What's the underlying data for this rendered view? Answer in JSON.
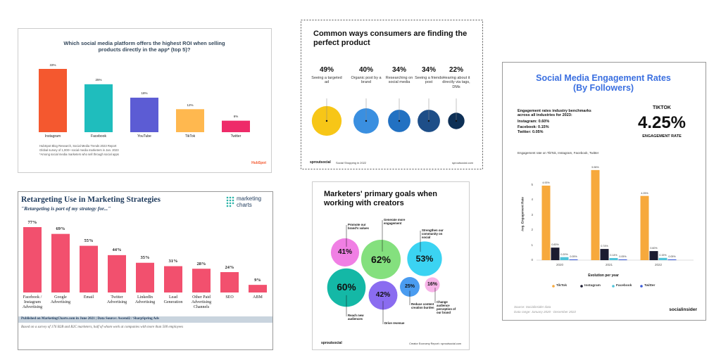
{
  "chart_data": [
    {
      "type": "bar",
      "title": "Which social media platform offers the highest ROI when selling products directly in the app* (top 5)?",
      "categories": [
        "Instagram",
        "Facebook",
        "YouTube",
        "TikTok",
        "Twitter"
      ],
      "values": [
        33,
        25,
        18,
        12,
        6
      ],
      "value_labels": [
        "33%",
        "25%",
        "18%",
        "12%",
        "6%"
      ],
      "colors": [
        "#f4582f",
        "#1fbdbd",
        "#5c5cd4",
        "#ffb84f",
        "#ee2b69"
      ],
      "source": [
        "HubSpot Blog Research, Social Media Trends 2023 Report",
        "Global survey of 1,000+ social media marketers in Jan. 2023",
        "*Among social media marketers who sell through social apps"
      ],
      "logo": "HubSpot"
    },
    {
      "type": "bubble",
      "title": "Common ways consumers are finding the perfect product",
      "categories": [
        "Seeing a targeted ad",
        "Organic post by a brand",
        "Researching on social media",
        "Seeing a friends post",
        "Hearing about it directly via tags, DMs"
      ],
      "values": [
        49,
        40,
        34,
        34,
        22
      ],
      "value_labels": [
        "49%",
        "40%",
        "34%",
        "34%",
        "22%"
      ],
      "colors": [
        "#f7c617",
        "#3a8fe0",
        "#2271c2",
        "#1e4e88",
        "#0e3056"
      ],
      "footer": [
        "sproutsocial",
        "Social Shopping in 2022",
        "sproutsocial.com"
      ]
    },
    {
      "type": "grouped_bar",
      "title": "Social Media Engagement Rates (By Followers)",
      "benchmarks": [
        "Engagement rates industry benchmarks across all industries for 2023:",
        "Instagram: 0.60%",
        "Facebook: 0.15%",
        "Twitter: 0.05%"
      ],
      "highlight": [
        "TIKTOK",
        "4.25%",
        "ENGAGEMENT RATE"
      ],
      "subtitle": "Engagement rate on TikTok, Instagram, Facebook, Twitter",
      "categories": [
        "2020",
        "2021",
        "2022"
      ],
      "series": [
        {
          "name": "TikTok",
          "color": "#f7a93c",
          "values": [
            4.93,
            5.96,
            4.25
          ],
          "value_labels": [
            "4.93%",
            "5.96%",
            "4.25%"
          ]
        },
        {
          "name": "Instagram",
          "color": "#1b1b30",
          "values": [
            0.83,
            0.74,
            0.6
          ],
          "value_labels": [
            "0.83%",
            "0.74%",
            "0.60%"
          ]
        },
        {
          "name": "Facebook",
          "color": "#4fc3d9",
          "values": [
            0.2,
            0.14,
            0.15
          ],
          "value_labels": [
            "0.20%",
            "0.14%",
            "0.15%"
          ]
        },
        {
          "name": "Twitter",
          "color": "#3b5bd9",
          "values": [
            0.05,
            0.05,
            0.05
          ],
          "value_labels": [
            "0.05%",
            "0.05%",
            "0.05%"
          ]
        }
      ],
      "ylim": [
        0,
        6
      ],
      "yticks": [
        0,
        1,
        2,
        3,
        4,
        5
      ],
      "ylabel": "Avg. Engagement Rate",
      "xlabel": "Evolution per year",
      "source": [
        "Source: Socialinsider data",
        "Data range: January 2020 - December 2022"
      ],
      "logo": "socialinsider"
    },
    {
      "type": "bar",
      "title": "Retargeting Use in Marketing Strategies",
      "subtitle": "\"Retargeting is part of my strategy for...\"",
      "categories": [
        "Facebook / Instagram Advertising",
        "Google Advertising",
        "Email",
        "Twitter Advertising",
        "LinkedIn Advertising",
        "Lead Generation",
        "Other Paid Advertising Channels",
        "SEO",
        "ABM"
      ],
      "values": [
        77,
        69,
        55,
        44,
        35,
        31,
        28,
        24,
        9
      ],
      "value_labels": [
        "77%",
        "69%",
        "55%",
        "44%",
        "35%",
        "31%",
        "28%",
        "24%",
        "9%"
      ],
      "color": "#f2506e",
      "logo": [
        "marketing",
        "charts"
      ],
      "source": [
        "Published on MarketingCharts.com in June 2021 | Data Source: Ascend2 / SharpSpring Ads",
        "Based on a survey of 176 B2B and B2C marketers, half of whom work at companies with more than 500 employees"
      ]
    },
    {
      "type": "bubble",
      "title": "Marketers' primary goals when working with creators",
      "categories": [
        "Promote our brand's values",
        "Generate more engagement",
        "Strengthen our community on social",
        "Reach new audiences",
        "Drive revenue",
        "Reduce content creation burden",
        "Change audience perception of our brand"
      ],
      "values": [
        41,
        62,
        53,
        60,
        42,
        25,
        16
      ],
      "value_labels": [
        "41%",
        "62%",
        "53%",
        "60%",
        "42%",
        "25%",
        "16%"
      ],
      "colors": [
        "#f07fe4",
        "#84e07e",
        "#3bd3f2",
        "#14b8a6",
        "#8a6cf0",
        "#4a9cf0",
        "#f7b4e8"
      ],
      "footer": [
        "sproutsocial",
        "Creator Economy Report • sproutsocial.com"
      ]
    }
  ]
}
